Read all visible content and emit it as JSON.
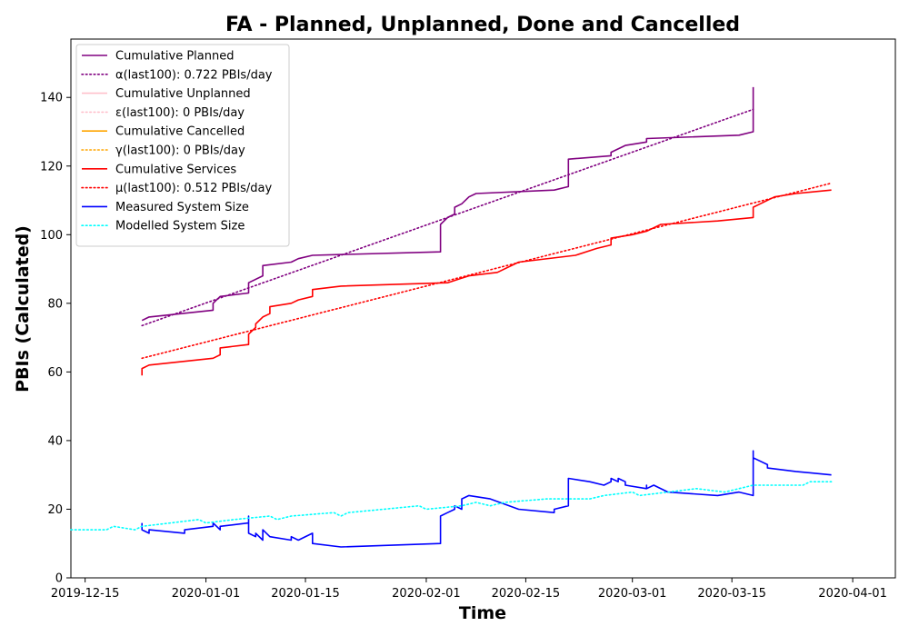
{
  "chart_data": {
    "type": "line",
    "title": "FA - Planned, Unplanned, Done  and Cancelled",
    "xlabel": "Time",
    "ylabel": "PBIs (Calculated)",
    "xlim": [
      "2019-12-13",
      "2020-04-07"
    ],
    "ylim": [
      0,
      157
    ],
    "x_ticks": [
      "2019-12-15",
      "2020-01-01",
      "2020-01-15",
      "2020-02-01",
      "2020-02-15",
      "2020-03-01",
      "2020-03-15",
      "2020-04-01"
    ],
    "y_ticks": [
      0,
      20,
      40,
      60,
      80,
      100,
      120,
      140
    ],
    "grid": false,
    "legend_position": "top-left",
    "series": [
      {
        "name": "Cumulative Planned",
        "color": "#800080",
        "style": "solid",
        "points": [
          [
            "2019-12-23",
            75
          ],
          [
            "2019-12-24",
            76
          ],
          [
            "2020-01-02",
            78
          ],
          [
            "2020-01-02",
            80
          ],
          [
            "2020-01-03",
            82
          ],
          [
            "2020-01-07",
            83
          ],
          [
            "2020-01-07",
            86
          ],
          [
            "2020-01-09",
            88
          ],
          [
            "2020-01-09",
            91
          ],
          [
            "2020-01-13",
            92
          ],
          [
            "2020-01-14",
            93
          ],
          [
            "2020-01-16",
            94
          ],
          [
            "2020-02-03",
            95
          ],
          [
            "2020-02-03",
            103
          ],
          [
            "2020-02-04",
            105
          ],
          [
            "2020-02-05",
            106
          ],
          [
            "2020-02-05",
            108
          ],
          [
            "2020-02-06",
            109
          ],
          [
            "2020-02-07",
            111
          ],
          [
            "2020-02-08",
            112
          ],
          [
            "2020-02-19",
            113
          ],
          [
            "2020-02-21",
            114
          ],
          [
            "2020-02-21",
            122
          ],
          [
            "2020-02-27",
            123
          ],
          [
            "2020-02-27",
            124
          ],
          [
            "2020-02-29",
            126
          ],
          [
            "2020-03-03",
            127
          ],
          [
            "2020-03-03",
            128
          ],
          [
            "2020-03-16",
            129
          ],
          [
            "2020-03-18",
            130
          ],
          [
            "2020-03-18",
            133
          ],
          [
            "2020-03-18",
            143
          ]
        ]
      },
      {
        "name": "α(last100): 0.722 PBIs/day",
        "color": "#800080",
        "style": "dotted",
        "points": [
          [
            "2019-12-23",
            73.5
          ],
          [
            "2020-03-18",
            136.5
          ]
        ]
      },
      {
        "name": "Cumulative Unplanned",
        "color": "#ffc0cb",
        "style": "solid",
        "points": []
      },
      {
        "name": "ε(last100): 0 PBIs/day",
        "color": "#ffc0cb",
        "style": "dotted",
        "points": []
      },
      {
        "name": "Cumulative Cancelled",
        "color": "#ffa500",
        "style": "solid",
        "points": []
      },
      {
        "name": "γ(last100): 0 PBIs/day",
        "color": "#ffa500",
        "style": "dotted",
        "points": []
      },
      {
        "name": "Cumulative Services",
        "color": "#ff0000",
        "style": "solid",
        "points": [
          [
            "2019-12-23",
            59
          ],
          [
            "2019-12-23",
            61
          ],
          [
            "2019-12-24",
            62
          ],
          [
            "2020-01-02",
            64
          ],
          [
            "2020-01-03",
            65
          ],
          [
            "2020-01-03",
            67
          ],
          [
            "2020-01-07",
            68
          ],
          [
            "2020-01-07",
            71
          ],
          [
            "2020-01-08",
            73
          ],
          [
            "2020-01-08",
            74
          ],
          [
            "2020-01-09",
            76
          ],
          [
            "2020-01-10",
            77
          ],
          [
            "2020-01-10",
            79
          ],
          [
            "2020-01-13",
            80
          ],
          [
            "2020-01-14",
            81
          ],
          [
            "2020-01-16",
            82
          ],
          [
            "2020-01-16",
            84
          ],
          [
            "2020-01-20",
            85
          ],
          [
            "2020-02-04",
            86
          ],
          [
            "2020-02-07",
            88
          ],
          [
            "2020-02-11",
            89
          ],
          [
            "2020-02-14",
            92
          ],
          [
            "2020-02-22",
            94
          ],
          [
            "2020-02-25",
            96
          ],
          [
            "2020-02-27",
            97
          ],
          [
            "2020-02-27",
            99
          ],
          [
            "2020-03-01",
            100
          ],
          [
            "2020-03-03",
            101
          ],
          [
            "2020-03-05",
            103
          ],
          [
            "2020-03-13",
            104
          ],
          [
            "2020-03-18",
            105
          ],
          [
            "2020-03-18",
            108
          ],
          [
            "2020-03-19",
            109
          ],
          [
            "2020-03-21",
            111
          ],
          [
            "2020-03-24",
            112
          ],
          [
            "2020-03-29",
            113
          ]
        ]
      },
      {
        "name": "μ(last100): 0.512 PBIs/day",
        "color": "#ff0000",
        "style": "dotted",
        "points": [
          [
            "2019-12-23",
            64
          ],
          [
            "2020-03-29",
            115
          ]
        ]
      },
      {
        "name": "Measured System Size",
        "color": "#0000ff",
        "style": "solid",
        "points": [
          [
            "2019-12-23",
            16
          ],
          [
            "2019-12-23",
            14
          ],
          [
            "2019-12-24",
            13
          ],
          [
            "2019-12-24",
            14
          ],
          [
            "2019-12-29",
            13
          ],
          [
            "2019-12-29",
            14
          ],
          [
            "2020-01-02",
            15
          ],
          [
            "2020-01-02",
            16
          ],
          [
            "2020-01-03",
            14
          ],
          [
            "2020-01-03",
            15
          ],
          [
            "2020-01-07",
            16
          ],
          [
            "2020-01-07",
            18
          ],
          [
            "2020-01-07",
            13
          ],
          [
            "2020-01-08",
            12
          ],
          [
            "2020-01-08",
            13
          ],
          [
            "2020-01-09",
            11
          ],
          [
            "2020-01-09",
            12
          ],
          [
            "2020-01-09",
            14
          ],
          [
            "2020-01-10",
            12
          ],
          [
            "2020-01-13",
            11
          ],
          [
            "2020-01-13",
            12
          ],
          [
            "2020-01-14",
            11
          ],
          [
            "2020-01-16",
            13
          ],
          [
            "2020-01-16",
            10
          ],
          [
            "2020-01-20",
            9
          ],
          [
            "2020-02-03",
            10
          ],
          [
            "2020-02-03",
            18
          ],
          [
            "2020-02-04",
            19
          ],
          [
            "2020-02-05",
            20
          ],
          [
            "2020-02-05",
            21
          ],
          [
            "2020-02-06",
            20
          ],
          [
            "2020-02-06",
            23
          ],
          [
            "2020-02-07",
            24
          ],
          [
            "2020-02-10",
            23
          ],
          [
            "2020-02-14",
            20
          ],
          [
            "2020-02-19",
            19
          ],
          [
            "2020-02-19",
            20
          ],
          [
            "2020-02-21",
            21
          ],
          [
            "2020-02-21",
            29
          ],
          [
            "2020-02-24",
            28
          ],
          [
            "2020-02-26",
            27
          ],
          [
            "2020-02-27",
            28
          ],
          [
            "2020-02-27",
            29
          ],
          [
            "2020-02-28",
            28
          ],
          [
            "2020-02-28",
            29
          ],
          [
            "2020-02-29",
            28
          ],
          [
            "2020-02-29",
            27
          ],
          [
            "2020-03-03",
            26
          ],
          [
            "2020-03-03",
            27
          ],
          [
            "2020-03-03",
            26
          ],
          [
            "2020-03-04",
            27
          ],
          [
            "2020-03-06",
            25
          ],
          [
            "2020-03-13",
            24
          ],
          [
            "2020-03-16",
            25
          ],
          [
            "2020-03-18",
            24
          ],
          [
            "2020-03-18",
            37
          ],
          [
            "2020-03-18",
            35
          ],
          [
            "2020-03-20",
            33
          ],
          [
            "2020-03-20",
            32
          ],
          [
            "2020-03-24",
            31
          ],
          [
            "2020-03-29",
            30
          ]
        ]
      },
      {
        "name": "Modelled System Size",
        "color": "#00ffff",
        "style": "dotted",
        "points": [
          [
            "2019-12-13",
            14
          ],
          [
            "2019-12-18",
            14
          ],
          [
            "2019-12-19",
            15
          ],
          [
            "2019-12-22",
            14
          ],
          [
            "2019-12-23",
            15
          ],
          [
            "2019-12-27",
            16
          ],
          [
            "2019-12-31",
            17
          ],
          [
            "2020-01-01",
            16
          ],
          [
            "2020-01-05",
            17
          ],
          [
            "2020-01-10",
            18
          ],
          [
            "2020-01-11",
            17
          ],
          [
            "2020-01-13",
            18
          ],
          [
            "2020-01-19",
            19
          ],
          [
            "2020-01-20",
            18
          ],
          [
            "2020-01-21",
            19
          ],
          [
            "2020-01-26",
            20
          ],
          [
            "2020-01-31",
            21
          ],
          [
            "2020-02-01",
            20
          ],
          [
            "2020-02-06",
            21
          ],
          [
            "2020-02-08",
            22
          ],
          [
            "2020-02-10",
            21
          ],
          [
            "2020-02-12",
            22
          ],
          [
            "2020-02-18",
            23
          ],
          [
            "2020-02-24",
            23
          ],
          [
            "2020-02-26",
            24
          ],
          [
            "2020-03-01",
            25
          ],
          [
            "2020-03-02",
            24
          ],
          [
            "2020-03-06",
            25
          ],
          [
            "2020-03-10",
            26
          ],
          [
            "2020-03-14",
            25
          ],
          [
            "2020-03-16",
            26
          ],
          [
            "2020-03-18",
            27
          ],
          [
            "2020-03-25",
            27
          ],
          [
            "2020-03-26",
            28
          ],
          [
            "2020-03-29",
            28
          ]
        ]
      }
    ]
  }
}
